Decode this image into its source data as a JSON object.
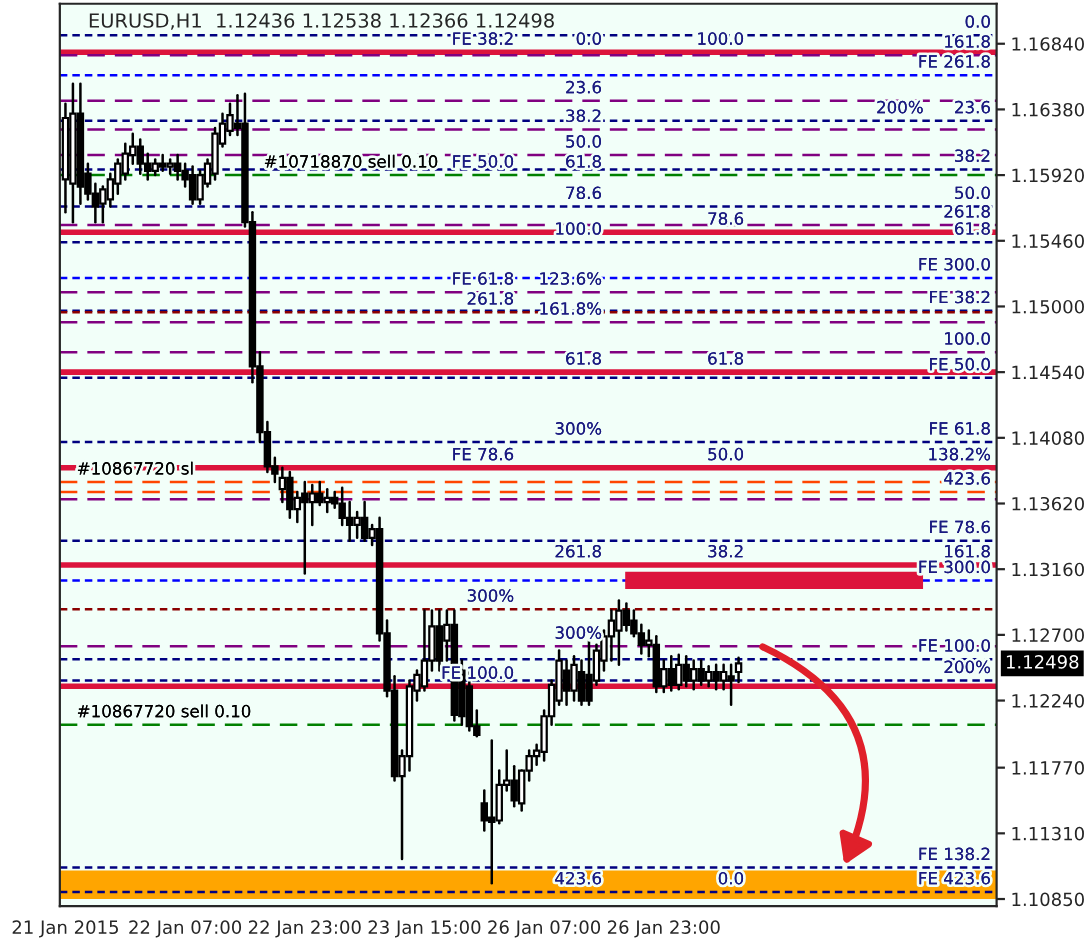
{
  "chart_data": {
    "type": "candlestick",
    "title": "EURUSD,H1  1.12436 1.12538 1.12366 1.12498",
    "categories": [
      "21 Jan 2015",
      null,
      null,
      null,
      null,
      null,
      null,
      null,
      null,
      null,
      null,
      null,
      null,
      null,
      null,
      null,
      "22 Jan 07:00",
      null,
      null,
      null,
      null,
      null,
      null,
      null,
      null,
      null,
      null,
      null,
      null,
      null,
      null,
      null,
      "22 Jan 23:00",
      null,
      null,
      null,
      null,
      null,
      null,
      null,
      null,
      null,
      null,
      null,
      null,
      null,
      null,
      null,
      "23 Jan 15:00",
      null,
      null,
      null,
      null,
      null,
      null,
      null,
      null,
      null,
      null,
      null,
      null,
      null,
      null,
      null,
      "26 Jan 07:00",
      null,
      null,
      null,
      null,
      null,
      null,
      null,
      null,
      null,
      null,
      null,
      null,
      null,
      null,
      null,
      "26 Jan 23:00",
      null,
      null,
      null,
      null,
      null,
      null,
      null,
      null,
      null,
      null,
      null,
      null,
      null,
      null,
      null,
      null,
      null,
      null,
      null,
      null,
      null,
      null,
      null,
      null,
      null,
      null,
      null,
      null,
      null,
      null,
      null,
      null,
      null,
      null,
      null,
      null,
      null,
      null,
      null,
      null,
      null,
      null,
      null,
      null
    ],
    "ohlc": [
      [
        1.1589,
        1.1642,
        1.1566,
        1.1632
      ],
      [
        1.1586,
        1.1656,
        1.1559,
        1.1635
      ],
      [
        1.1635,
        1.1656,
        1.1572,
        1.1584
      ],
      [
        1.1593,
        1.16,
        1.1575,
        1.1579
      ],
      [
        1.1579,
        1.1586,
        1.1559,
        1.157
      ],
      [
        1.1572,
        1.1584,
        1.1559,
        1.1582
      ],
      [
        1.1575,
        1.1593,
        1.157,
        1.1589
      ],
      [
        1.1586,
        1.1603,
        1.1579,
        1.16
      ],
      [
        1.1593,
        1.1614,
        1.1589,
        1.1607
      ],
      [
        1.1606,
        1.1621,
        1.16,
        1.1612
      ],
      [
        1.1612,
        1.1617,
        1.1593,
        1.16
      ],
      [
        1.16,
        1.1607,
        1.1589,
        1.1595
      ],
      [
        1.1595,
        1.1603,
        1.1592,
        1.16
      ],
      [
        1.16,
        1.1606,
        1.1595,
        1.1598
      ],
      [
        1.1598,
        1.1603,
        1.1593,
        1.16
      ],
      [
        1.16,
        1.1606,
        1.1589,
        1.1595
      ],
      [
        1.1595,
        1.16,
        1.1584,
        1.1589
      ],
      [
        1.1592,
        1.1598,
        1.1572,
        1.1575
      ],
      [
        1.1575,
        1.1595,
        1.1572,
        1.1592
      ],
      [
        1.1586,
        1.1603,
        1.1584,
        1.16
      ],
      [
        1.1593,
        1.1625,
        1.1589,
        1.1621
      ],
      [
        1.1614,
        1.1635,
        1.1612,
        1.1628
      ],
      [
        1.1623,
        1.1642,
        1.162,
        1.1634
      ],
      [
        1.1628,
        1.1648,
        1.162,
        1.1625
      ],
      [
        1.1628,
        1.1649,
        1.1556,
        1.1559
      ],
      [
        1.1559,
        1.1566,
        1.1447,
        1.1458
      ],
      [
        1.1458,
        1.1468,
        1.1405,
        1.1412
      ],
      [
        1.1412,
        1.1419,
        1.1384,
        1.1388
      ],
      [
        1.1388,
        1.1394,
        1.1377,
        1.1383
      ],
      [
        1.1372,
        1.1387,
        1.1363,
        1.138
      ],
      [
        1.138,
        1.1384,
        1.1352,
        1.1358
      ],
      [
        1.1358,
        1.137,
        1.1349,
        1.1366
      ],
      [
        1.1369,
        1.1377,
        1.1313,
        1.1363
      ],
      [
        1.1363,
        1.1375,
        1.1347,
        1.1369
      ],
      [
        1.1369,
        1.1377,
        1.1361,
        1.1363
      ],
      [
        1.1363,
        1.1372,
        1.1356,
        1.1366
      ],
      [
        1.1366,
        1.137,
        1.1359,
        1.1362
      ],
      [
        1.1362,
        1.1373,
        1.1347,
        1.1352
      ],
      [
        1.1352,
        1.1363,
        1.1336,
        1.1347
      ],
      [
        1.1347,
        1.1356,
        1.1338,
        1.1352
      ],
      [
        1.1352,
        1.1363,
        1.1336,
        1.1338
      ],
      [
        1.1338,
        1.1347,
        1.1333,
        1.1344
      ],
      [
        1.1344,
        1.1352,
        1.1266,
        1.1271
      ],
      [
        1.1271,
        1.128,
        1.1227,
        1.1231
      ],
      [
        1.1231,
        1.1241,
        1.1168,
        1.1171
      ],
      [
        1.1171,
        1.1189,
        1.1113,
        1.1185
      ],
      [
        1.1185,
        1.1238,
        1.1175,
        1.1234
      ],
      [
        1.1231,
        1.1245,
        1.1224,
        1.1242
      ],
      [
        1.1234,
        1.1287,
        1.1231,
        1.1252
      ],
      [
        1.1252,
        1.1287,
        1.1245,
        1.1276
      ],
      [
        1.1276,
        1.1287,
        1.1245,
        1.1252
      ],
      [
        1.1266,
        1.1287,
        1.1252,
        1.1277
      ],
      [
        1.1277,
        1.1287,
        1.121,
        1.1214
      ],
      [
        1.1245,
        1.1252,
        1.1207,
        1.1213
      ],
      [
        1.1234,
        1.1245,
        1.1203,
        1.1206
      ],
      [
        1.1206,
        1.1217,
        1.1199,
        1.12
      ],
      [
        1.1152,
        1.1161,
        1.1133,
        1.114
      ],
      [
        1.1142,
        1.1196,
        1.1096,
        1.1139
      ],
      [
        1.114,
        1.1175,
        1.1138,
        1.1165
      ],
      [
        1.1165,
        1.1189,
        1.1161,
        1.1168
      ],
      [
        1.1168,
        1.1178,
        1.115,
        1.1154
      ],
      [
        1.1152,
        1.1175,
        1.1147,
        1.1175
      ],
      [
        1.1175,
        1.1189,
        1.1168,
        1.1185
      ],
      [
        1.1185,
        1.1193,
        1.1179,
        1.1189
      ],
      [
        1.1188,
        1.1217,
        1.1182,
        1.1213
      ],
      [
        1.1213,
        1.1238,
        1.1207,
        1.1235
      ],
      [
        1.1224,
        1.1259,
        1.1221,
        1.1252
      ],
      [
        1.1245,
        1.1252,
        1.1221,
        1.1231
      ],
      [
        1.1231,
        1.1255,
        1.1224,
        1.1249
      ],
      [
        1.1244,
        1.1252,
        1.1221,
        1.1224
      ],
      [
        1.1242,
        1.1266,
        1.1221,
        1.1224
      ],
      [
        1.1238,
        1.1263,
        1.1235,
        1.1259
      ],
      [
        1.1252,
        1.1273,
        1.1245,
        1.1269
      ],
      [
        1.1269,
        1.1287,
        1.1252,
        1.128
      ],
      [
        1.1273,
        1.1294,
        1.1249,
        1.1287
      ],
      [
        1.1287,
        1.1292,
        1.1273,
        1.1277
      ],
      [
        1.128,
        1.1287,
        1.1269,
        1.1271
      ],
      [
        1.1271,
        1.1277,
        1.1257,
        1.1263
      ],
      [
        1.1263,
        1.1273,
        1.1255,
        1.1266
      ],
      [
        1.1263,
        1.1269,
        1.123,
        1.1234
      ],
      [
        1.1234,
        1.1252,
        1.123,
        1.1246
      ],
      [
        1.1246,
        1.1255,
        1.1231,
        1.1235
      ],
      [
        1.1235,
        1.1256,
        1.1232,
        1.1249
      ],
      [
        1.1249,
        1.1255,
        1.1234,
        1.1238
      ],
      [
        1.1238,
        1.1252,
        1.1232,
        1.1246
      ],
      [
        1.1246,
        1.1252,
        1.1235,
        1.1238
      ],
      [
        1.1238,
        1.1248,
        1.1234,
        1.1244
      ],
      [
        1.1244,
        1.1249,
        1.1232,
        1.1238
      ],
      [
        1.1238,
        1.1249,
        1.1232,
        1.1244
      ],
      [
        1.1241,
        1.1249,
        1.1221,
        1.1238
      ],
      [
        1.1244,
        1.1254,
        1.1237,
        1.125
      ],
      null,
      null,
      null,
      null,
      null,
      null,
      null,
      null,
      null,
      null,
      null,
      null,
      null,
      null,
      null,
      null,
      null,
      null,
      null,
      null,
      null,
      null,
      null,
      null,
      null,
      null,
      null,
      null,
      null,
      null,
      null,
      null,
      null,
      null
    ],
    "ylim": [
      1.108,
      1.1712
    ],
    "yticks": [
      {
        "value": 1.1684,
        "label": "1.16840"
      },
      {
        "value": 1.1638,
        "label": "1.16380"
      },
      {
        "value": 1.1592,
        "label": "1.15920"
      },
      {
        "value": 1.1546,
        "label": "1.15460"
      },
      {
        "value": 1.15,
        "label": "1.15000"
      },
      {
        "value": 1.1454,
        "label": "1.14540"
      },
      {
        "value": 1.1408,
        "label": "1.14080"
      },
      {
        "value": 1.1362,
        "label": "1.13620"
      },
      {
        "value": 1.1316,
        "label": "1.13160"
      },
      {
        "value": 1.127,
        "label": "1.12700"
      },
      {
        "value": 1.1224,
        "label": "1.12240"
      },
      {
        "value": 1.1177,
        "label": "1.11770"
      },
      {
        "value": 1.1131,
        "label": "1.11310"
      },
      {
        "value": 1.1085,
        "label": "1.10850"
      }
    ],
    "bands": [
      {
        "axis": "y",
        "from": 1.1085,
        "to": 1.1105,
        "color": "#ffa500"
      }
    ],
    "ref_lines": [
      {
        "axis": "y",
        "value": 1.1678,
        "color": "#dc143c",
        "line_style": "solid"
      },
      {
        "axis": "y",
        "value": 1.1552,
        "color": "#dc143c",
        "line_style": "solid"
      },
      {
        "axis": "y",
        "value": 1.1454,
        "color": "#dc143c",
        "line_style": "solid"
      },
      {
        "axis": "y",
        "value": 1.1387,
        "color": "#dc143c",
        "line_style": "solid"
      },
      {
        "axis": "y",
        "value": 1.1319,
        "color": "#dc143c",
        "line_style": "solid"
      },
      {
        "axis": "y",
        "value": 1.1234,
        "color": "#dc143c",
        "line_style": "solid"
      },
      {
        "axis": "y",
        "value": 1.1592,
        "color": "#008000",
        "line_style": "dashed"
      },
      {
        "axis": "y",
        "value": 1.1207,
        "color": "#008000",
        "line_style": "dashed"
      },
      {
        "axis": "y",
        "value": 1.1377,
        "color": "#ff4500",
        "line_style": "dashed"
      },
      {
        "axis": "y",
        "value": 1.137,
        "color": "#ff4500",
        "line_style": "dashed"
      },
      {
        "axis": "y",
        "value": 1.169,
        "color": "#000080",
        "line_style": "dotted"
      },
      {
        "axis": "y",
        "value": 1.1662,
        "color": "#0000ff",
        "line_style": "dotted"
      },
      {
        "axis": "y",
        "value": 1.163,
        "color": "#000080",
        "line_style": "dotted"
      },
      {
        "axis": "y",
        "value": 1.1596,
        "color": "#000080",
        "line_style": "dotted"
      },
      {
        "axis": "y",
        "value": 1.157,
        "color": "#000080",
        "line_style": "dotted"
      },
      {
        "axis": "y",
        "value": 1.1545,
        "color": "#000080",
        "line_style": "dotted"
      },
      {
        "axis": "y",
        "value": 1.152,
        "color": "#0000ff",
        "line_style": "dotted"
      },
      {
        "axis": "y",
        "value": 1.1497,
        "color": "#000080",
        "line_style": "dotted"
      },
      {
        "axis": "y",
        "value": 1.145,
        "color": "#000080",
        "line_style": "dotted"
      },
      {
        "axis": "y",
        "value": 1.1405,
        "color": "#000080",
        "line_style": "dotted"
      },
      {
        "axis": "y",
        "value": 1.1336,
        "color": "#000080",
        "line_style": "dotted"
      },
      {
        "axis": "y",
        "value": 1.1308,
        "color": "#0000ff",
        "line_style": "dotted"
      },
      {
        "axis": "y",
        "value": 1.1253,
        "color": "#000080",
        "line_style": "dotted"
      },
      {
        "axis": "y",
        "value": 1.1238,
        "color": "#000080",
        "line_style": "dotted"
      },
      {
        "axis": "y",
        "value": 1.1107,
        "color": "#000080",
        "line_style": "dotted"
      },
      {
        "axis": "y",
        "value": 1.109,
        "color": "#000080",
        "line_style": "dotted"
      },
      {
        "axis": "y",
        "value": 1.1676,
        "color": "#800080",
        "line_style": "dashed"
      },
      {
        "axis": "y",
        "value": 1.1644,
        "color": "#800080",
        "line_style": "dashed"
      },
      {
        "axis": "y",
        "value": 1.1624,
        "color": "#800080",
        "line_style": "dashed"
      },
      {
        "axis": "y",
        "value": 1.1606,
        "color": "#800080",
        "line_style": "dashed"
      },
      {
        "axis": "y",
        "value": 1.1557,
        "color": "#800080",
        "line_style": "dashed"
      },
      {
        "axis": "y",
        "value": 1.151,
        "color": "#800080",
        "line_style": "dashed"
      },
      {
        "axis": "y",
        "value": 1.1489,
        "color": "#800080",
        "line_style": "dashed"
      },
      {
        "axis": "y",
        "value": 1.1468,
        "color": "#800080",
        "line_style": "dashed"
      },
      {
        "axis": "y",
        "value": 1.1365,
        "color": "#800080",
        "line_style": "dashed"
      },
      {
        "axis": "y",
        "value": 1.1262,
        "color": "#800080",
        "line_style": "dashed"
      },
      {
        "axis": "y",
        "value": 1.1288,
        "color": "#8b0000",
        "line_style": "dotted"
      },
      {
        "axis": "y",
        "value": 1.1496,
        "color": "#8b0000",
        "line_style": "dotted"
      }
    ],
    "annotations": [
      {
        "text": "200%",
        "y": 1.163
      },
      {
        "text": "0.0",
        "y": 1.169
      },
      {
        "text": "161.8",
        "y": 1.1676
      },
      {
        "text": "FE 261.8",
        "y": 1.1662
      },
      {
        "text": "23.6",
        "y": 1.163
      },
      {
        "text": "38.2",
        "y": 1.1596
      },
      {
        "text": "50.0",
        "y": 1.157
      },
      {
        "text": "261.8",
        "y": 1.1557
      },
      {
        "text": "61.8",
        "y": 1.1545
      },
      {
        "text": "FE 300.0",
        "y": 1.152
      },
      {
        "text": "FE 38.2",
        "y": 1.1497
      },
      {
        "text": "100.0",
        "y": 1.1468
      },
      {
        "text": "FE 50.0",
        "y": 1.145
      },
      {
        "text": "FE 61.8",
        "y": 1.1405
      },
      {
        "text": "138.2%",
        "y": 1.1387
      },
      {
        "text": "423.6",
        "y": 1.137
      },
      {
        "text": "FE 78.6",
        "y": 1.1336
      },
      {
        "text": "161.8",
        "y": 1.1319
      },
      {
        "text": "FE 300.0",
        "y": 1.1308
      },
      {
        "text": "FE 100.0",
        "y": 1.1253
      },
      {
        "text": "200%",
        "y": 1.1238
      },
      {
        "text": "FE 138.2",
        "y": 1.1107
      },
      {
        "text": "FE 423.6",
        "y": 1.109
      },
      {
        "text": "0.0",
        "y": 1.1678
      },
      {
        "text": "23.6",
        "y": 1.1644
      },
      {
        "text": "38.2",
        "y": 1.1624
      },
      {
        "text": "50.0",
        "y": 1.1606
      },
      {
        "text": "61.8",
        "y": 1.1592
      },
      {
        "text": "78.6",
        "y": 1.157
      },
      {
        "text": "100.0",
        "y": 1.1545
      },
      {
        "text": "123.6%",
        "y": 1.151
      },
      {
        "text": "161.8%",
        "y": 1.1489
      },
      {
        "text": "61.8",
        "y": 1.1454
      },
      {
        "text": "300%",
        "y": 1.1405
      },
      {
        "text": "261.8",
        "y": 1.1319
      },
      {
        "text": "300%",
        "y": 1.1262
      },
      {
        "text": "423.6",
        "y": 1.109
      },
      {
        "text": "100.0",
        "y": 1.1678
      },
      {
        "text": "78.6",
        "y": 1.1552
      },
      {
        "text": "61.8",
        "y": 1.1454
      },
      {
        "text": "50.0",
        "y": 1.1387
      },
      {
        "text": "38.2",
        "y": 1.1319
      },
      {
        "text": "0.0",
        "y": 1.109
      },
      {
        "text": "FE 38.2",
        "y": 1.1678
      },
      {
        "text": "FE 50.0",
        "y": 1.1592
      },
      {
        "text": "FE 61.8",
        "y": 1.151
      },
      {
        "text": "261.8",
        "y": 1.1496
      },
      {
        "text": "FE 78.6",
        "y": 1.1387
      },
      {
        "text": "300%",
        "y": 1.1288
      },
      {
        "text": "FE 100.0",
        "y": 1.1234
      },
      {
        "text": "#10718870 sell 0.10",
        "y": 1.1592
      },
      {
        "text": "#10867720 sl",
        "y": 1.1377
      },
      {
        "text": "#10867720 sell 0.10",
        "y": 1.1207
      },
      "1.12498"
    ]
  }
}
